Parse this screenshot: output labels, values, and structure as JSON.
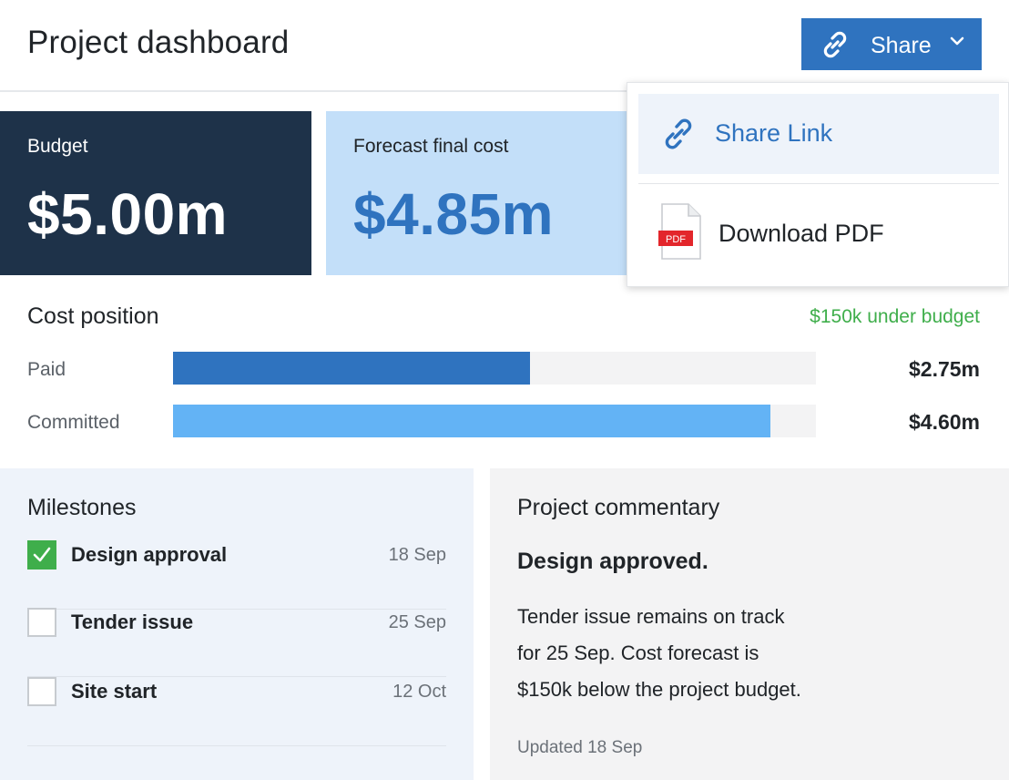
{
  "header": {
    "title": "Project dashboard",
    "share_label": "Share"
  },
  "share_menu": {
    "items": [
      {
        "label": "Share Link",
        "icon": "link-icon"
      },
      {
        "label": "Download PDF",
        "icon": "pdf-file-icon",
        "badge": "PDF"
      }
    ]
  },
  "cards": {
    "budget": {
      "label": "Budget",
      "value": "$5.00m"
    },
    "forecast": {
      "label": "Forecast final cost",
      "value": "$4.85m"
    }
  },
  "cost_position": {
    "title": "Cost position",
    "status": "$150k under budget",
    "rows": [
      {
        "label": "Paid",
        "value": "$2.75m",
        "fill_fraction": 0.555,
        "color": "#2f73bf"
      },
      {
        "label": "Committed",
        "value": "$4.60m",
        "fill_fraction": 0.929,
        "color": "#63b3f5"
      }
    ]
  },
  "milestones": {
    "title": "Milestones",
    "items": [
      {
        "label": "Design approval",
        "date": "18 Sep",
        "done": true
      },
      {
        "label": "Tender issue",
        "date": "25 Sep",
        "done": false
      },
      {
        "label": "Site start",
        "date": "12 Oct",
        "done": false
      }
    ]
  },
  "commentary": {
    "title": "Project commentary",
    "headline": "Design approved.",
    "body_lines": [
      "Tender issue remains on track",
      "for 25 Sep. Cost forecast is",
      "$150k below the project budget."
    ],
    "updated": "Updated 18 Sep"
  },
  "colors": {
    "primary": "#2f73bf",
    "navy": "#1e3249",
    "light_blue": "#c3dff9",
    "success": "#3fae4b"
  }
}
